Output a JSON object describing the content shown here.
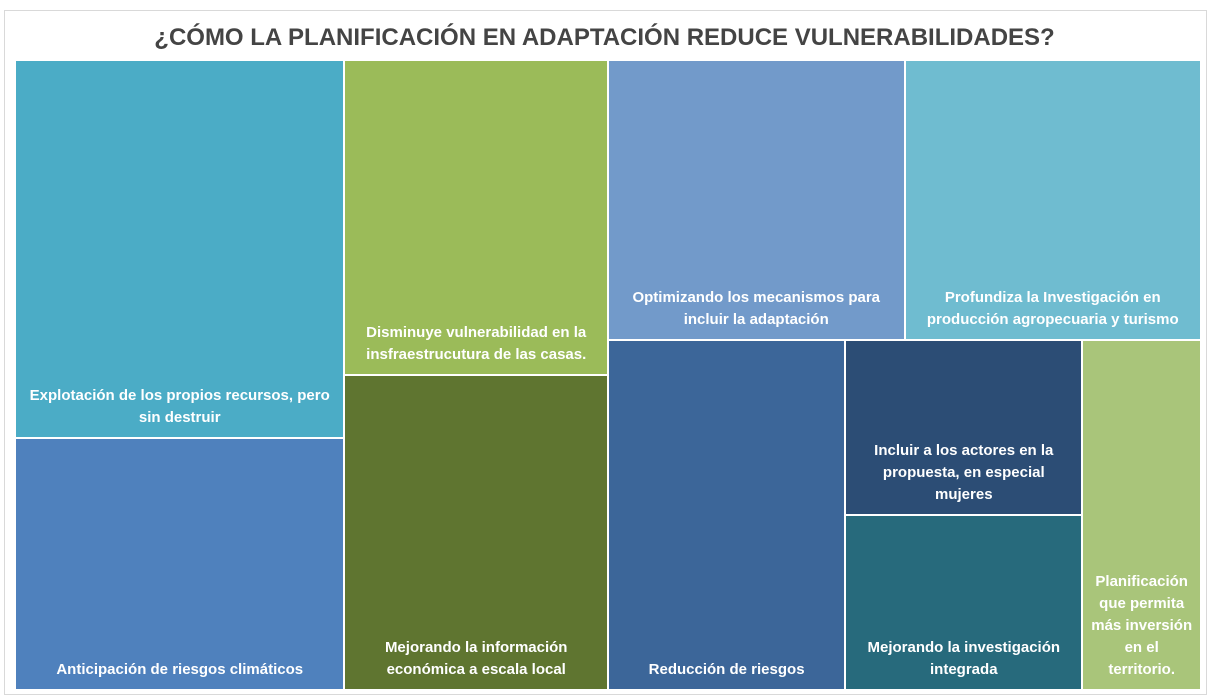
{
  "chart_data": {
    "type": "treemap",
    "title": "¿CÓMO LA PLANIFICACIÓN EN ADAPTACIÓN REDUCE VULNERABILIDADES?",
    "categories": [
      "Explotación de los propios recursos, pero sin destruir",
      "Anticipación de riesgos climáticos",
      "Disminuye vulnerabilidad en la insfraestrucutura de las casas.",
      "Mejorando la información económica a escala local",
      "Optimizando los mecanismos para incluir la adaptación",
      "Profundiza la Investigación en producción agropecuaria y turismo",
      "Reducción de riesgos",
      "Incluir a los actores en la propuesta, en especial mujeres",
      "Mejorando la investigación integrada",
      "Planificación que permita más inversión en el territorio."
    ],
    "values": [
      3,
      2,
      2,
      2,
      2,
      2,
      2,
      1,
      1,
      1
    ],
    "colors": [
      "#4bacc6",
      "#4f81bd",
      "#9bbb59",
      "#5f7530",
      "#729aca",
      "#6fbcd0",
      "#3c6699",
      "#2c4d75",
      "#276a7c",
      "#a9c57a"
    ]
  }
}
